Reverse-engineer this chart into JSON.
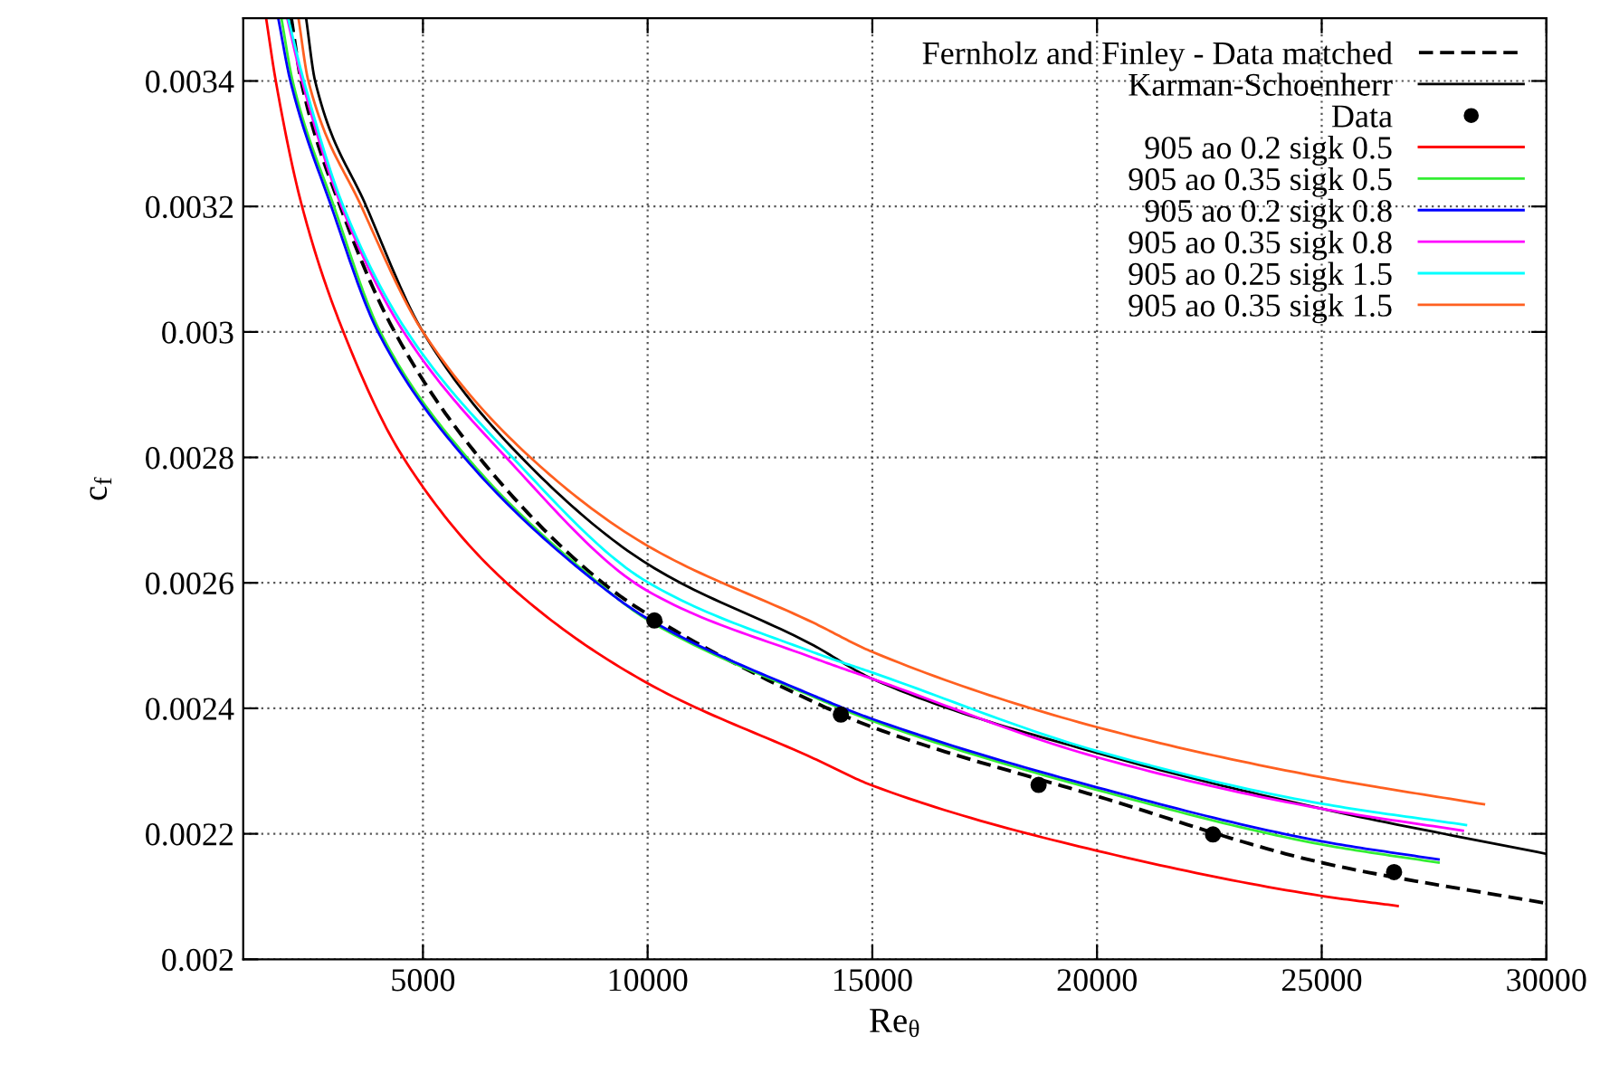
{
  "chart_data": {
    "type": "line",
    "xlabel": "Re$_{θ}$",
    "ylabel": "c$_{f}$",
    "xlim": [
      1000,
      30000
    ],
    "xticks": [
      5000,
      10000,
      15000,
      20000,
      25000,
      30000
    ],
    "ylim": [
      0.002,
      0.0035
    ],
    "yticks": [
      0.002,
      0.0022,
      0.0024,
      0.0026,
      0.0028,
      0.003,
      0.0032,
      0.0034
    ],
    "grid": true,
    "legend": "top right",
    "series": [
      {
        "name": "Fernholz and Finley - Data matched",
        "line_style": "dashed",
        "color": "#000000",
        "x": [
          2070,
          2290,
          3160,
          4370,
          6250,
          9000,
          10000,
          13700,
          15000,
          20000,
          25000,
          30000
        ],
        "values": [
          0.0035,
          0.0034,
          0.0032,
          0.003,
          0.0028,
          0.0026,
          0.00255,
          0.00241,
          0.00237,
          0.00226,
          0.002154,
          0.002089
        ]
      },
      {
        "name": "Karman-Schoenherr",
        "line_style": "solid",
        "color": "#000000",
        "x": [
          2400,
          2600,
          3740,
          5000,
          7190,
          10000,
          13700,
          15000,
          20000,
          25000,
          30000
        ],
        "values": [
          0.0035,
          0.0034,
          0.0032,
          0.003,
          0.0028,
          0.00263,
          0.0025,
          0.002447,
          0.002329,
          0.00224,
          0.002168
        ]
      },
      {
        "name": "Data",
        "type": "scatter",
        "marker": "circle",
        "color": "#000000",
        "x": [
          10150,
          14300,
          18700,
          22580,
          26610
        ],
        "values": [
          0.00254,
          0.00239,
          0.002278,
          0.002199,
          0.002139
        ]
      },
      {
        "name": "905 ao 0.2 sigk 0.5",
        "line_style": "solid",
        "color": "#ff0000",
        "x": [
          1510,
          1725,
          2310,
          3230,
          4560,
          6860,
          10000,
          13700,
          15000,
          20000,
          25000,
          26690
        ],
        "values": [
          0.0035,
          0.0034,
          0.0032,
          0.003,
          0.0028,
          0.0026,
          0.00244,
          0.00232,
          0.002277,
          0.002173,
          0.002101,
          0.002085
        ]
      },
      {
        "name": "905 ao 0.35 sigk 0.5",
        "line_style": "solid",
        "color": "#33ee33",
        "x": [
          1850,
          2100,
          3020,
          4050,
          5980,
          8900,
          10000,
          13700,
          15000,
          20000,
          25000,
          27600
        ],
        "values": [
          0.0035,
          0.0034,
          0.0032,
          0.003,
          0.0028,
          0.0026,
          0.002541,
          0.002418,
          0.00238,
          0.00227,
          0.002183,
          0.002154
        ]
      },
      {
        "name": "905 ao 0.2 sigk 0.8",
        "line_style": "solid",
        "color": "#0000ff",
        "x": [
          1780,
          2050,
          2960,
          4000,
          5920,
          8870,
          10000,
          13700,
          15000,
          20000,
          25000,
          27600
        ],
        "values": [
          0.0035,
          0.0034,
          0.0032,
          0.003,
          0.0028,
          0.0026,
          0.002543,
          0.00242,
          0.002383,
          0.002274,
          0.002188,
          0.002159
        ]
      },
      {
        "name": "905 ao 0.35 sigk 0.8",
        "line_style": "solid",
        "color": "#ff00ff",
        "x": [
          1980,
          2310,
          3190,
          4570,
          6850,
          10000,
          13700,
          15000,
          20000,
          25000,
          28140
        ],
        "values": [
          0.0035,
          0.0034,
          0.0032,
          0.003,
          0.0028,
          0.002587,
          0.00248,
          0.002447,
          0.002322,
          0.00224,
          0.002205
        ]
      },
      {
        "name": "905 ao 0.25 sigk 1.5",
        "line_style": "solid",
        "color": "#00ffff",
        "x": [
          2000,
          2350,
          3230,
          4650,
          6990,
          10000,
          13700,
          15000,
          20000,
          25000,
          28210
        ],
        "values": [
          0.0035,
          0.0034,
          0.0032,
          0.003,
          0.0028,
          0.002601,
          0.002489,
          0.002457,
          0.002332,
          0.002248,
          0.002214
        ]
      },
      {
        "name": "905 ao 0.35 sigk 1.5",
        "line_style": "solid",
        "color": "#ff6020",
        "x": [
          2230,
          2450,
          3630,
          5000,
          7390,
          10000,
          13700,
          15000,
          20000,
          25000,
          28610
        ],
        "values": [
          0.0035,
          0.0034,
          0.0032,
          0.003,
          0.0028,
          0.002659,
          0.002536,
          0.00249,
          0.00237,
          0.00229,
          0.002247
        ]
      }
    ]
  }
}
